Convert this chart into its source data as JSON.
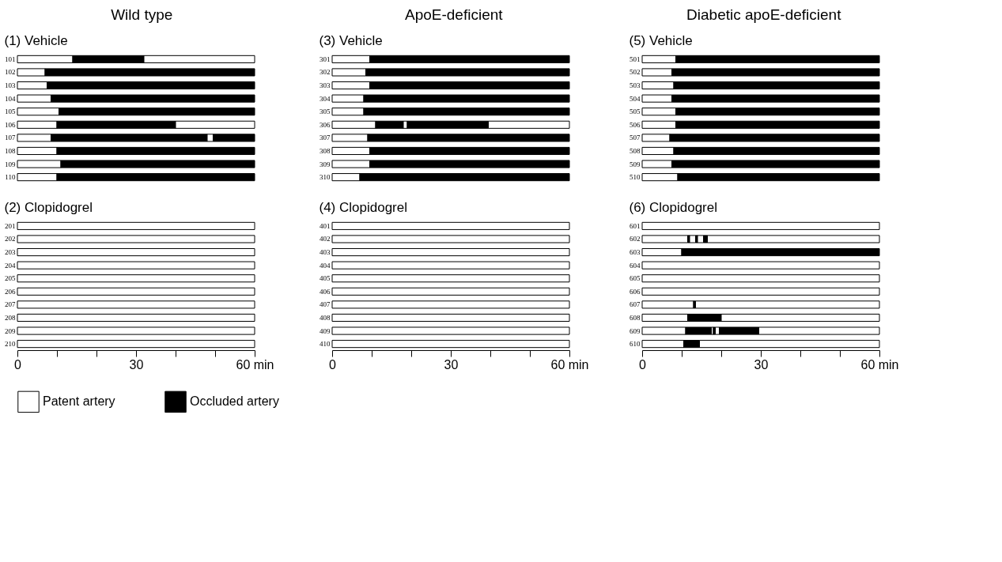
{
  "chart_data": [
    {
      "type": "bar",
      "orientation": "horizontal",
      "stacked": true,
      "title": "Wild type",
      "subtitle": "(1) Vehicle",
      "tick_labels": "y",
      "xlim": [
        0,
        60
      ],
      "categories": [
        "101",
        "102",
        "103",
        "104",
        "105",
        "106",
        "107",
        "108",
        "109",
        "110"
      ],
      "series": [
        {
          "color": "#ffffff",
          "values": [
            14,
            7,
            7.5,
            8.5,
            10.5,
            10,
            8.5,
            10,
            11,
            10
          ]
        },
        {
          "color": "#000000",
          "values": [
            18,
            53,
            52.5,
            51.5,
            49.5,
            30,
            39.5,
            50,
            49,
            50
          ]
        },
        {
          "color": "#ffffff",
          "values": [
            28,
            null,
            null,
            null,
            null,
            20,
            1.5,
            null,
            null,
            null
          ]
        },
        {
          "color": "#000000",
          "values": [
            null,
            null,
            null,
            null,
            null,
            null,
            10.5,
            null,
            null,
            null
          ]
        }
      ]
    },
    {
      "type": "bar",
      "orientation": "horizontal",
      "stacked": true,
      "title": "(2) Clopidogrel",
      "legend": "bottom",
      "xlim": [
        0,
        60
      ],
      "xticks": [
        0,
        {
          "value": 10,
          "label": null
        },
        {
          "value": 20,
          "label": null
        },
        30,
        {
          "value": 40,
          "label": null
        },
        {
          "value": 50,
          "label": null
        },
        {
          "value": 60,
          "label": "60 min"
        }
      ],
      "categories": [
        "201",
        "202",
        "203",
        "204",
        "205",
        "206",
        "207",
        "208",
        "209",
        "210"
      ],
      "series": [
        {
          "name": "Patent artery",
          "color": "#ffffff",
          "values": [
            60,
            60,
            60,
            60,
            60,
            60,
            60,
            60,
            60,
            60
          ]
        },
        {
          "name": "Occluded artery",
          "color": "#000000",
          "values": [
            null,
            null,
            null,
            null,
            null,
            null,
            null,
            null,
            null,
            null
          ]
        }
      ]
    },
    {
      "type": "bar",
      "orientation": "horizontal",
      "stacked": true,
      "title": "ApoE-deficient",
      "subtitle": "(3) Vehicle",
      "tick_labels": "y",
      "xlim": [
        0,
        60
      ],
      "categories": [
        "301",
        "302",
        "303",
        "304",
        "305",
        "306",
        "307",
        "308",
        "309",
        "310"
      ],
      "series": [
        {
          "color": "#ffffff",
          "values": [
            9.5,
            8.5,
            9.5,
            8,
            8,
            11,
            9,
            9.5,
            9.5,
            7
          ]
        },
        {
          "color": "#000000",
          "values": [
            50.5,
            51.5,
            50.5,
            52,
            52,
            7,
            51,
            50.5,
            50.5,
            53
          ]
        },
        {
          "color": "#ffffff",
          "values": [
            null,
            null,
            null,
            null,
            null,
            1,
            null,
            null,
            null,
            null
          ]
        },
        {
          "color": "#000000",
          "values": [
            null,
            null,
            null,
            null,
            null,
            20.5,
            null,
            null,
            null,
            null
          ]
        },
        {
          "color": "#ffffff",
          "values": [
            null,
            null,
            null,
            null,
            null,
            20.5,
            null,
            null,
            null,
            null
          ]
        }
      ]
    },
    {
      "type": "bar",
      "orientation": "horizontal",
      "stacked": true,
      "title": "(4) Clopidogrel",
      "xlim": [
        0,
        60
      ],
      "xticks": [
        0,
        {
          "value": 10,
          "label": null
        },
        {
          "value": 20,
          "label": null
        },
        30,
        {
          "value": 40,
          "label": null
        },
        {
          "value": 50,
          "label": null
        },
        {
          "value": 60,
          "label": "60 min"
        }
      ],
      "categories": [
        "401",
        "402",
        "403",
        "404",
        "405",
        "406",
        "407",
        "408",
        "409",
        "410"
      ],
      "series": [
        {
          "color": "#ffffff",
          "values": [
            60,
            60,
            60,
            60,
            60,
            60,
            60,
            60,
            60,
            60
          ]
        }
      ]
    },
    {
      "type": "bar",
      "orientation": "horizontal",
      "stacked": true,
      "title": "Diabetic apoE-deficient",
      "subtitle": "(5) Vehicle",
      "tick_labels": "y",
      "xlim": [
        0,
        60
      ],
      "categories": [
        "501",
        "502",
        "503",
        "504",
        "505",
        "506",
        "507",
        "508",
        "509",
        "510"
      ],
      "series": [
        {
          "color": "#ffffff",
          "values": [
            8.5,
            7.5,
            8,
            7.5,
            8.5,
            8.5,
            7,
            8,
            7.5,
            9
          ]
        },
        {
          "color": "#000000",
          "values": [
            51.5,
            52.5,
            52,
            52.5,
            51.5,
            51.5,
            53,
            52,
            52.5,
            51
          ]
        }
      ]
    },
    {
      "type": "bar",
      "orientation": "horizontal",
      "stacked": true,
      "title": "(6) Clopidogrel",
      "xlim": [
        0,
        60
      ],
      "xticks": [
        0,
        {
          "value": 10,
          "label": null
        },
        {
          "value": 20,
          "label": null
        },
        30,
        {
          "value": 40,
          "label": null
        },
        {
          "value": 50,
          "label": null
        },
        {
          "value": 60,
          "label": "60 min"
        }
      ],
      "categories": [
        "601",
        "602",
        "603",
        "604",
        "605",
        "606",
        "607",
        "608",
        "609",
        "610"
      ],
      "series": [
        {
          "color": "#ffffff",
          "values": [
            60,
            11.5,
            10,
            60,
            60,
            60,
            13,
            11.5,
            11,
            10.5
          ]
        },
        {
          "color": "#000000",
          "values": [
            null,
            0.5,
            50,
            null,
            null,
            null,
            0.5,
            8.5,
            6.5,
            4
          ]
        },
        {
          "color": "#ffffff",
          "values": [
            null,
            1.5,
            null,
            null,
            null,
            null,
            46.5,
            40,
            0.5,
            45.5
          ]
        },
        {
          "color": "#000000",
          "values": [
            null,
            0.5,
            null,
            null,
            null,
            null,
            null,
            null,
            0.5,
            null
          ]
        },
        {
          "color": "#ffffff",
          "values": [
            null,
            1.5,
            null,
            null,
            null,
            null,
            null,
            null,
            1,
            null
          ]
        },
        {
          "color": "#000000",
          "values": [
            null,
            1,
            null,
            null,
            null,
            null,
            null,
            null,
            10,
            null
          ]
        },
        {
          "color": "#ffffff",
          "values": [
            null,
            43.5,
            null,
            null,
            null,
            null,
            null,
            null,
            30.5,
            null
          ]
        }
      ]
    }
  ]
}
